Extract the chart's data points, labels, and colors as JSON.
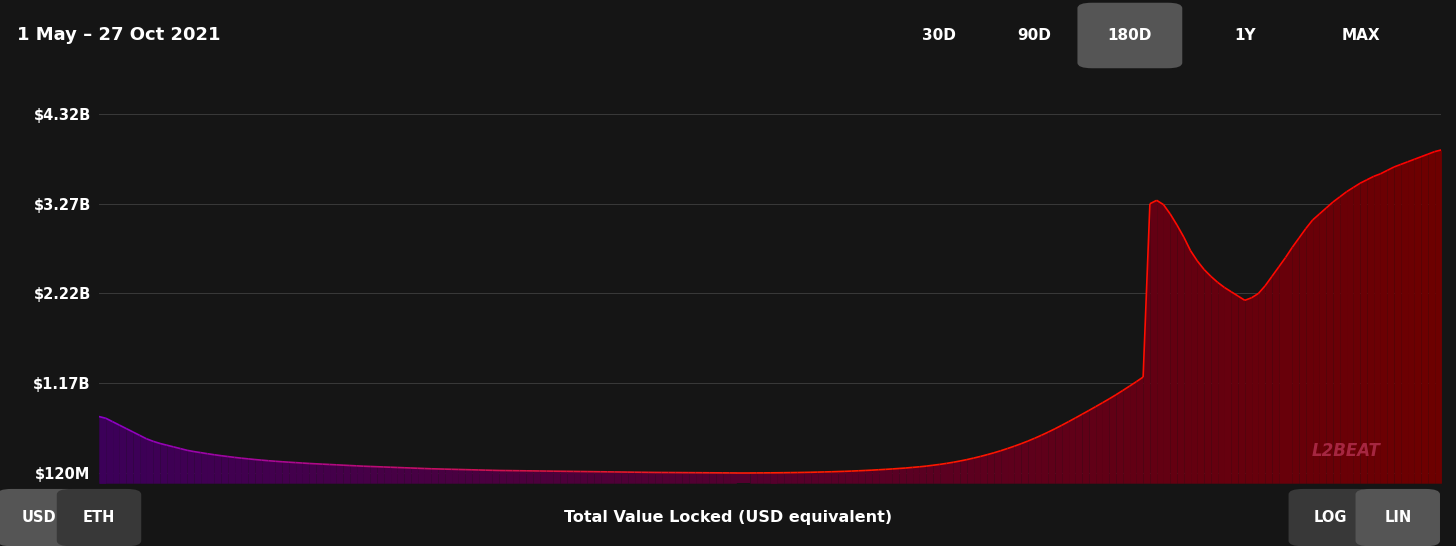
{
  "title_left": "1 May – 27 Oct 2021",
  "buttons_right": [
    "30D",
    "90D",
    "180D",
    "1Y",
    "MAX"
  ],
  "active_button": "180D",
  "yticks_labels": [
    "$120M",
    "$1.17B",
    "$2.22B",
    "$3.27B",
    "$4.32B"
  ],
  "yticks_values": [
    120000000,
    1170000000,
    2220000000,
    3270000000,
    4320000000
  ],
  "xlabel": "Total Value Locked (USD equivalent)",
  "bottom_left_buttons": [
    "USD",
    "ETH"
  ],
  "active_bottom_button": "USD",
  "bottom_right_buttons": [
    "LOG",
    "LIN"
  ],
  "active_bottom_right_button": "LIN",
  "watermark": "L2BEAT",
  "bg_color": "#151515",
  "text_color": "#ffffff",
  "ymin": 0,
  "ymax": 4600000000,
  "data_values": [
    780000000,
    760000000,
    720000000,
    680000000,
    640000000,
    600000000,
    560000000,
    520000000,
    490000000,
    465000000,
    445000000,
    425000000,
    405000000,
    385000000,
    370000000,
    358000000,
    345000000,
    333000000,
    322000000,
    312000000,
    302000000,
    293000000,
    285000000,
    277000000,
    270000000,
    263000000,
    257000000,
    251000000,
    246000000,
    241000000,
    236000000,
    231000000,
    227000000,
    223000000,
    219000000,
    215000000,
    211000000,
    207000000,
    203000000,
    199000000,
    196000000,
    193000000,
    190000000,
    187000000,
    184000000,
    181000000,
    178000000,
    175000000,
    172000000,
    169000000,
    167000000,
    165000000,
    163000000,
    161000000,
    159000000,
    157000000,
    155000000,
    153000000,
    151000000,
    149000000,
    148000000,
    147000000,
    146000000,
    145000000,
    144000000,
    143000000,
    142000000,
    141000000,
    140000000,
    139000000,
    138000000,
    137000000,
    136000000,
    135000000,
    134000000,
    133000000,
    132000000,
    131000000,
    130000000,
    129000000,
    128000000,
    127000000,
    126000000,
    125500000,
    125000000,
    124500000,
    124000000,
    123500000,
    123000000,
    122500000,
    122000000,
    121500000,
    121000000,
    120500000,
    120000000,
    120000000,
    120000000,
    120500000,
    121000000,
    121500000,
    122000000,
    123000000,
    124000000,
    125000000,
    126500000,
    128000000,
    130000000,
    132000000,
    134000000,
    136500000,
    139000000,
    142000000,
    145500000,
    149000000,
    153000000,
    157500000,
    162000000,
    167000000,
    172500000,
    178000000,
    185000000,
    192000000,
    200000000,
    210000000,
    220000000,
    232000000,
    245000000,
    260000000,
    276000000,
    294000000,
    313000000,
    334000000,
    356000000,
    380000000,
    406000000,
    433000000,
    462000000,
    493000000,
    526000000,
    561000000,
    598000000,
    637000000,
    678000000,
    720000000,
    763000000,
    807000000,
    851000000,
    896000000,
    941000000,
    987000000,
    1035000000,
    1085000000,
    1136000000,
    1188000000,
    1242000000,
    3270000000,
    3310000000,
    3260000000,
    3150000000,
    3020000000,
    2880000000,
    2720000000,
    2600000000,
    2500000000,
    2420000000,
    2350000000,
    2290000000,
    2240000000,
    2190000000,
    2140000000,
    2170000000,
    2220000000,
    2310000000,
    2420000000,
    2530000000,
    2640000000,
    2760000000,
    2870000000,
    2980000000,
    3080000000,
    3150000000,
    3220000000,
    3290000000,
    3350000000,
    3410000000,
    3460000000,
    3510000000,
    3550000000,
    3590000000,
    3620000000,
    3660000000,
    3700000000,
    3730000000,
    3760000000,
    3790000000,
    3820000000,
    3850000000,
    3880000000,
    3900000000
  ]
}
